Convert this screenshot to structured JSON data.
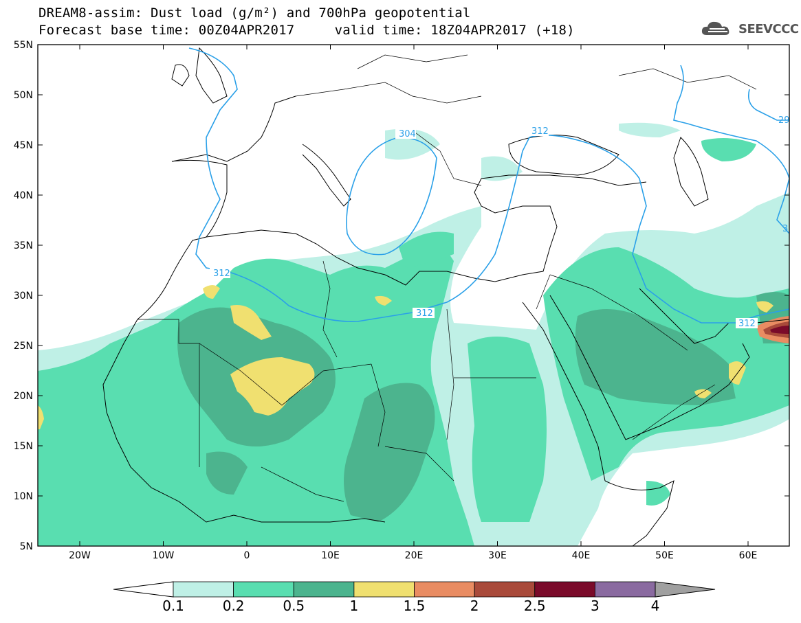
{
  "header": {
    "title_line1": "DREAM8-assim: Dust load (g/m²) and 700hPa geopotential",
    "title_line2": "Forecast base time: 00Z04APR2017     valid time: 18Z04APR2017 (+18)",
    "logo_text": "SEEVCCC"
  },
  "map": {
    "lat_labels": [
      "55N",
      "50N",
      "45N",
      "40N",
      "35N",
      "30N",
      "25N",
      "20N",
      "15N",
      "10N",
      "5N"
    ],
    "lon_labels": [
      "20W",
      "10W",
      "0",
      "10E",
      "20E",
      "30E",
      "40E",
      "50E",
      "60E"
    ],
    "contour_labels": [
      "304",
      "312",
      "312",
      "312",
      "312",
      "29",
      "3"
    ]
  },
  "colorbar": {
    "levels": [
      "0.1",
      "0.2",
      "0.5",
      "1",
      "1.5",
      "2",
      "2.5",
      "3",
      "4"
    ],
    "colors": [
      "#bff0e6",
      "#59deb0",
      "#4cb48e",
      "#f0e070",
      "#e98c62",
      "#a94a3a",
      "#7a0a2a",
      "#8a6aa0"
    ],
    "under_color": "#ffffff",
    "over_color": "#a0a0a0"
  }
}
